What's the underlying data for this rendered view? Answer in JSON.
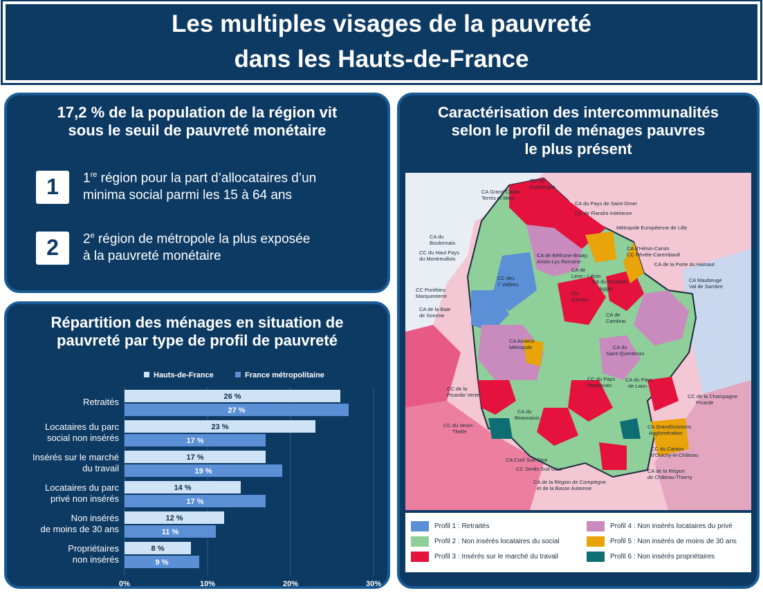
{
  "header": {
    "line1": "Les multiples visages de la pauvreté",
    "line2": "dans les Hauts-de-France"
  },
  "stats_panel": {
    "title_line1": "17,2 % de la population de la région vit",
    "title_line2": "sous le seuil de pauvreté monétaire",
    "items": [
      {
        "num": "1",
        "sup": "re",
        "line1": " région pour la part d’allocataires d’un",
        "line2": "minima social parmi les 15 à 64 ans"
      },
      {
        "num": "2",
        "sup": "e",
        "line1": " région de métropole la plus exposée",
        "line2": "à la pauvreté monétaire"
      }
    ]
  },
  "chart_panel": {
    "title_line1": "Répartition des ménages en situation de",
    "title_line2": "pauvreté par type de profil de pauvreté"
  },
  "chart_data": {
    "type": "bar",
    "orientation": "horizontal",
    "categories": [
      [
        "Retraités"
      ],
      [
        "Locataires du parc",
        "social non insérés"
      ],
      [
        "Insérés sur le marché",
        "du travail"
      ],
      [
        "Locataires du parc",
        "privé non insérés"
      ],
      [
        "Non insérés",
        "de moins de 30 ans"
      ],
      [
        "Propriétaires",
        "non insérés"
      ]
    ],
    "series": [
      {
        "name": "Hauts-de-France",
        "values": [
          26,
          23,
          17,
          14,
          12,
          8
        ],
        "labels": [
          "26 %",
          "23 %",
          "17 %",
          "14 %",
          "12 %",
          "8 %"
        ],
        "color": "#cfe3f7"
      },
      {
        "name": "France métropolitaine",
        "values": [
          27,
          17,
          19,
          17,
          11,
          9
        ],
        "labels": [
          "27 %",
          "17 %",
          "19 %",
          "17 %",
          "11 %",
          "9 %"
        ],
        "color": "#5b8fd6"
      }
    ],
    "xlim": [
      0,
      30
    ],
    "xticks": [
      "0%",
      "10%",
      "20%",
      "30%"
    ],
    "legend": "top"
  },
  "map_panel": {
    "title_line1": "Caractérisation des intercommunalités",
    "title_line2": "selon le profil de ménages pauvres",
    "title_line3": "le plus présent",
    "labels": [
      "CU de",
      "Dunkerque",
      "CA Grand Calais",
      "Terres et Mers",
      "CA du Pays de Saint-Omer",
      "CC de Flandre Intérieure",
      "Métropole Européenne de Lille",
      "CA du",
      "Boulonnais",
      "CA d’Hénin-Carvin",
      "CC Pévèle-Carembault",
      "CA de Béthune-Bruay,",
      "Artois-Lys Romane",
      "CA de la Porte du Hainaut",
      "CC du Haut Pays",
      "du Montreuillois",
      "CA de",
      "Lens - Liévin",
      "CC des",
      "7 Vallées",
      "CA Maubeuge",
      "Val de Sambre",
      "CA du Douaisis",
      "Agglo",
      "CC Ponthieu-",
      "Marquenterre",
      "CU",
      "d’Arras",
      "CA de la Baie",
      "de Somme",
      "CA de",
      "Cambrai",
      "CA Amiens",
      "Métropole",
      "CA du",
      "Saint-Quentinois",
      "CC de la",
      "Picardie Verte",
      "CC du Pays",
      "Noyonnais",
      "CA du Pays",
      "de Laon",
      "CC de la Champagne",
      "Picarde",
      "CA du",
      "Beauvaisis",
      "CC du Vexin-",
      "Thelle",
      "CA GrandSoissons",
      "Agglomération",
      "CA Creil Sud Oise",
      "CC Senlis Sud Oise",
      "CC du Canton",
      "d’Oulchy-le-Château",
      "CA de la Région",
      "de Château-Thierry",
      "CA de la Région de Compiègne",
      "et de la Basse Automne"
    ],
    "legend": [
      {
        "label": "Profil 1 : Retraités",
        "color": "#5b8fd6"
      },
      {
        "label": "Profil 2 : Non insérés locataires du social",
        "color": "#8fcf9a"
      },
      {
        "label": "Profil 3 : Insérés sur le marché du travail",
        "color": "#e4123d"
      },
      {
        "label": "Profil 4 : Non insérés locataires du privé",
        "color": "#c98bbd"
      },
      {
        "label": "Profil 5 : Non insérés de moins de 30 ans",
        "color": "#e9a40a"
      },
      {
        "label": "Profil 6 : Non insérés propriétaires",
        "color": "#0f6e73"
      }
    ]
  }
}
